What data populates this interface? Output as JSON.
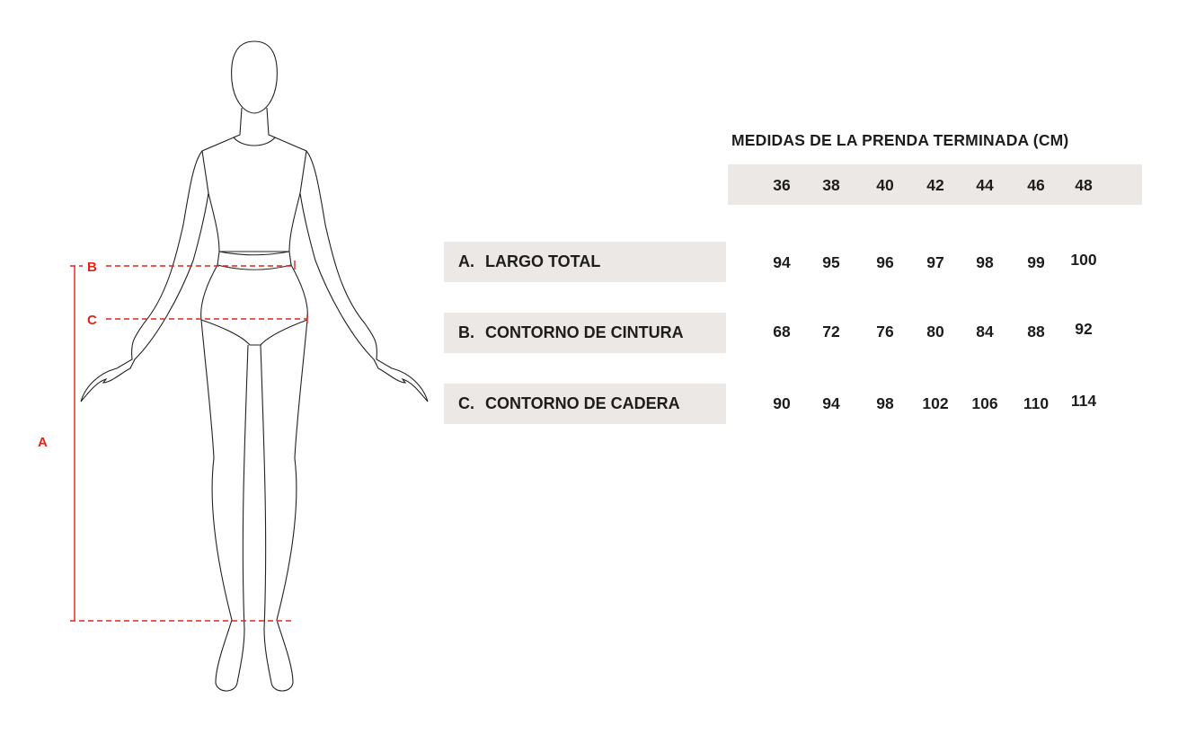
{
  "title": "MEDIDAS DE LA PRENDA TERMINADA (CM)",
  "sizes": [
    "36",
    "38",
    "40",
    "42",
    "44",
    "46",
    "48"
  ],
  "rows": [
    {
      "letter": "A.",
      "label": "LARGO TOTAL",
      "values": [
        "94",
        "95",
        "96",
        "97",
        "98",
        "99",
        "100"
      ]
    },
    {
      "letter": "B.",
      "label": "CONTORNO DE CINTURA",
      "values": [
        "68",
        "72",
        "76",
        "80",
        "84",
        "88",
        "92"
      ]
    },
    {
      "letter": "C.",
      "label": "CONTORNO DE CADERA",
      "values": [
        "90",
        "94",
        "98",
        "102",
        "106",
        "110",
        "114"
      ]
    }
  ],
  "figure_labels": {
    "a": "A",
    "b": "B",
    "c": "C"
  },
  "colors": {
    "measure_red": "#e2231a",
    "band_grey": "#ebe8e5",
    "text": "#1d1d1b"
  }
}
